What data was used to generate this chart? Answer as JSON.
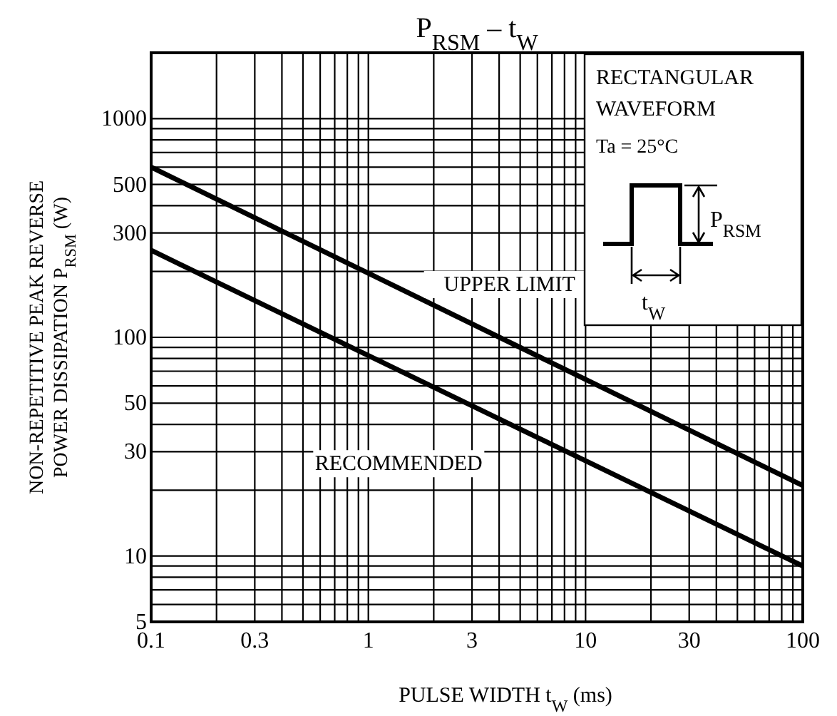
{
  "chart_data": {
    "type": "line",
    "title": "P$_{RSM}$ – t$_{W}$",
    "xlabel": "PULSE WIDTH  t$_{W}$  (ms)",
    "ylabel": "NON-REPETITIVE PEAK REVERSE\nPOWER DISSIPATION  P$_{RSM}$  (W)",
    "log": "xy",
    "grid": true,
    "legend": false,
    "marker": "none",
    "line_style": "solid",
    "x": [
      0.1,
      100
    ],
    "xlim": [
      0.1,
      100
    ],
    "ylim": [
      5,
      2000
    ],
    "xticks": [
      0.1,
      {
        "value": 0.2,
        "label": null
      },
      0.3,
      {
        "value": 0.4,
        "label": null
      },
      {
        "value": 0.5,
        "label": null
      },
      {
        "value": 0.6,
        "label": null
      },
      {
        "value": 0.7,
        "label": null
      },
      {
        "value": 0.8,
        "label": null
      },
      {
        "value": 0.9,
        "label": null
      },
      1,
      {
        "value": 2,
        "label": null
      },
      3,
      {
        "value": 4,
        "label": null
      },
      {
        "value": 5,
        "label": null
      },
      {
        "value": 6,
        "label": null
      },
      {
        "value": 7,
        "label": null
      },
      {
        "value": 8,
        "label": null
      },
      {
        "value": 9,
        "label": null
      },
      10,
      {
        "value": 20,
        "label": null
      },
      30,
      {
        "value": 40,
        "label": null
      },
      {
        "value": 50,
        "label": null
      },
      {
        "value": 60,
        "label": null
      },
      {
        "value": 70,
        "label": null
      },
      {
        "value": 80,
        "label": null
      },
      {
        "value": 90,
        "label": null
      },
      100
    ],
    "yticks": [
      5,
      {
        "value": 6,
        "label": null
      },
      {
        "value": 7,
        "label": null
      },
      {
        "value": 8,
        "label": null
      },
      {
        "value": 9,
        "label": null
      },
      10,
      {
        "value": 20,
        "label": null
      },
      30,
      {
        "value": 40,
        "label": null
      },
      50,
      {
        "value": 60,
        "label": null
      },
      {
        "value": 70,
        "label": null
      },
      {
        "value": 80,
        "label": null
      },
      {
        "value": 90,
        "label": null
      },
      100,
      {
        "value": 200,
        "label": null
      },
      300,
      {
        "value": 400,
        "label": null
      },
      500,
      {
        "value": 600,
        "label": null
      },
      {
        "value": 700,
        "label": null
      },
      {
        "value": 800,
        "label": null
      },
      {
        "value": 900,
        "label": null
      },
      1000,
      {
        "value": 2000,
        "label": null
      }
    ],
    "series": [
      {
        "name": "UPPER LIMIT",
        "color": "#000000",
        "values": [
          600,
          21
        ]
      },
      {
        "name": "RECOMMENDED",
        "color": "#000000",
        "values": [
          250,
          9
        ]
      }
    ],
    "annotations": [
      "RECTANGULAR WAVEFORM",
      "Ta = 25°C",
      "P$_{RSM}$",
      "t$_{W}$"
    ]
  }
}
